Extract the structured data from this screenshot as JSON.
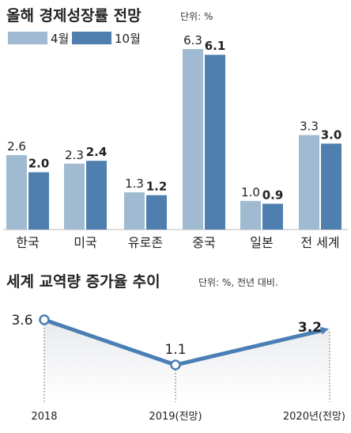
{
  "colors": {
    "series_april": "#9fbad1",
    "series_october": "#4f7fae",
    "text": "#222222",
    "line": "#4a7fb5",
    "marker_fill": "#ffffff",
    "fill_gradient_top": "#e8eaed"
  },
  "chart_data": [
    {
      "type": "bar",
      "title": "올해 경제성장률 전망",
      "unit_label": "단위: %",
      "categories": [
        "한국",
        "미국",
        "유로존",
        "중국",
        "일본",
        "전 세계"
      ],
      "series": [
        {
          "name": "4월",
          "values": [
            2.6,
            2.3,
            1.3,
            6.3,
            1.0,
            3.3
          ],
          "labels": [
            "2.6",
            "2.3",
            "1.3",
            "6.3",
            "1.0",
            "3.3"
          ]
        },
        {
          "name": "10월",
          "values": [
            2.0,
            2.4,
            1.2,
            6.1,
            0.9,
            3.0
          ],
          "labels": [
            "2.0",
            "2.4",
            "1.2",
            "6.1",
            "0.9",
            "3.0"
          ]
        }
      ],
      "ylim": [
        0,
        6.3
      ],
      "legend": "top-left",
      "grid": false
    },
    {
      "type": "line",
      "title": "세계 교역량 증가율 추이",
      "unit_label": "단위: %, 전년 대비.",
      "categories": [
        "2018",
        "2019(전망)",
        "2020년(전망)"
      ],
      "values": [
        3.6,
        1.1,
        3.2
      ],
      "labels": [
        "3.6",
        "1.1",
        "3.2"
      ],
      "ylim": [
        1.1,
        3.6
      ],
      "grid": false
    }
  ]
}
